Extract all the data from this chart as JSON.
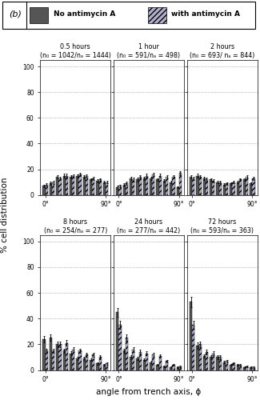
{
  "title_label": "(b)",
  "legend_labels": [
    "No antimycin A",
    "with antimycin A"
  ],
  "ylabel": "% cell distribution",
  "xlabel": "angle from trench axis, ϕ",
  "subplots": [
    {
      "title": "0.5 hours",
      "subtitle": "(n₀ = 1042/nₐ = 1444)",
      "no_anti": [
        7,
        9,
        14,
        15,
        14,
        15,
        14,
        12,
        11,
        10
      ],
      "no_anti_err": [
        1.0,
        1.2,
        1.3,
        1.4,
        1.2,
        1.3,
        1.2,
        1.0,
        1.0,
        0.8
      ],
      "with_anti": [
        8,
        10,
        13,
        15,
        15,
        16,
        15,
        13,
        12,
        10
      ],
      "with_anti_err": [
        1.0,
        1.2,
        1.3,
        1.4,
        1.3,
        1.4,
        1.3,
        1.1,
        1.0,
        0.9
      ]
    },
    {
      "title": "1 hour",
      "subtitle": "(n₀ = 591/nₐ = 498)",
      "no_anti": [
        6,
        8,
        13,
        12,
        13,
        13,
        12,
        11,
        10,
        6
      ],
      "no_anti_err": [
        1.0,
        1.2,
        1.4,
        1.3,
        1.4,
        1.3,
        1.2,
        1.1,
        1.0,
        0.8
      ],
      "with_anti": [
        7,
        9,
        12,
        14,
        15,
        16,
        15,
        14,
        14,
        17
      ],
      "with_anti_err": [
        1.1,
        1.2,
        1.3,
        1.4,
        1.4,
        1.5,
        1.4,
        1.3,
        1.3,
        1.5
      ]
    },
    {
      "title": "2 hours",
      "subtitle": "(n₀ = 693/ nₐ = 844)",
      "no_anti": [
        14,
        15,
        13,
        12,
        10,
        8,
        9,
        10,
        12,
        9
      ],
      "no_anti_err": [
        1.4,
        1.4,
        1.3,
        1.2,
        1.0,
        0.9,
        1.0,
        1.0,
        1.2,
        1.0
      ],
      "with_anti": [
        13,
        14,
        12,
        11,
        10,
        9,
        10,
        12,
        14,
        13
      ],
      "with_anti_err": [
        1.3,
        1.4,
        1.3,
        1.1,
        1.0,
        0.9,
        1.0,
        1.2,
        1.3,
        1.2
      ]
    },
    {
      "title": "8 hours",
      "subtitle": "(n₀ = 254/nₐ = 277)",
      "no_anti": [
        24,
        25,
        20,
        15,
        13,
        9,
        9,
        8,
        5,
        4
      ],
      "no_anti_err": [
        2.5,
        2.5,
        2.2,
        1.8,
        1.5,
        1.1,
        1.1,
        1.0,
        0.8,
        0.7
      ],
      "with_anti": [
        15,
        15,
        20,
        21,
        16,
        15,
        12,
        12,
        10,
        5
      ],
      "with_anti_err": [
        1.8,
        1.8,
        2.2,
        2.3,
        1.9,
        1.8,
        1.5,
        1.5,
        1.3,
        0.8
      ]
    },
    {
      "title": "24 hours",
      "subtitle": "(n₀ = 277/nₐ = 442)",
      "no_anti": [
        45,
        15,
        10,
        9,
        8,
        6,
        4,
        3,
        2,
        2
      ],
      "no_anti_err": [
        3.5,
        1.8,
        1.3,
        1.2,
        1.1,
        0.9,
        0.7,
        0.6,
        0.5,
        0.5
      ],
      "with_anti": [
        35,
        25,
        16,
        14,
        13,
        12,
        11,
        7,
        4,
        3
      ],
      "with_anti_err": [
        3.0,
        2.5,
        1.9,
        1.8,
        1.6,
        1.5,
        1.4,
        1.0,
        0.7,
        0.6
      ]
    },
    {
      "title": "72 hours",
      "subtitle": "(n₀ = 593/nₐ = 363)",
      "no_anti": [
        53,
        19,
        11,
        10,
        10,
        6,
        4,
        4,
        2,
        2
      ],
      "no_anti_err": [
        4.0,
        2.2,
        1.4,
        1.3,
        1.3,
        0.9,
        0.7,
        0.7,
        0.5,
        0.5
      ],
      "with_anti": [
        35,
        20,
        14,
        13,
        10,
        7,
        5,
        4,
        3,
        2
      ],
      "with_anti_err": [
        3.0,
        2.2,
        1.8,
        1.7,
        1.3,
        1.0,
        0.8,
        0.7,
        0.6,
        0.5
      ]
    }
  ],
  "color_no_anti": "#555555",
  "color_with_anti": "#b0b0cc",
  "yticks": [
    0,
    20,
    40,
    60,
    80,
    100
  ],
  "ylim": [
    0,
    105
  ],
  "n_bins": 10
}
